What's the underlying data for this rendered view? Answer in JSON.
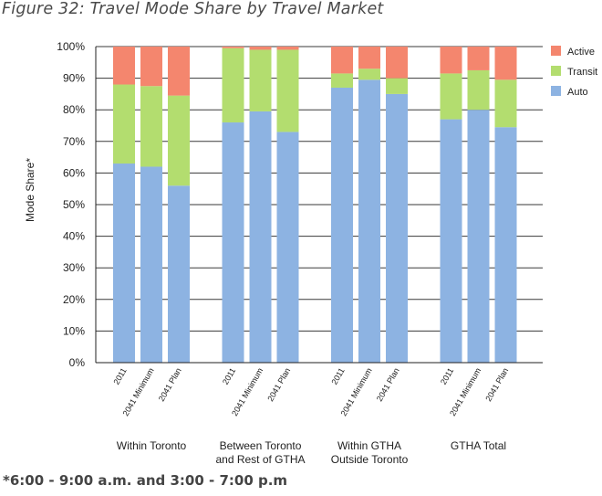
{
  "figure_title": "Figure 32: Travel Mode Share by Travel Market",
  "footnote": "*6:00 - 9:00 a.m. and 3:00 - 7:00 p.m",
  "chart_data": {
    "type": "bar",
    "stacked": true,
    "ylabel": "Mode Share*",
    "ylim": [
      0,
      100
    ],
    "yticks": [
      "0%",
      "10%",
      "20%",
      "30%",
      "40%",
      "50%",
      "60%",
      "70%",
      "80%",
      "90%",
      "100%"
    ],
    "grid": true,
    "legend_position": "top-right",
    "groups": [
      {
        "name": "Within Toronto",
        "categories": [
          "2011",
          "2041 Minimum",
          "2041 Plan"
        ]
      },
      {
        "name": "Between Toronto and Rest of GTHA",
        "categories": [
          "2011",
          "2041 Minimum",
          "2041 Plan"
        ]
      },
      {
        "name": "Within GTHA Outside Toronto",
        "categories": [
          "2011",
          "2041 Minimum",
          "2041 Plan"
        ]
      },
      {
        "name": "GTHA Total",
        "categories": [
          "2011",
          "2041 Minimum",
          "2041 Plan"
        ]
      }
    ],
    "series": [
      {
        "name": "Auto",
        "color": "#8db3e2",
        "values": [
          63,
          62,
          56,
          76,
          79.5,
          73,
          87,
          89.5,
          85,
          77,
          80,
          74.5
        ]
      },
      {
        "name": "Transit",
        "color": "#b3dd6f",
        "values": [
          25,
          25.5,
          28.5,
          23.5,
          19.5,
          26,
          4.5,
          3.5,
          5,
          14.5,
          12.5,
          15
        ]
      },
      {
        "name": "Active",
        "color": "#f4866e",
        "values": [
          12,
          12.5,
          15.5,
          0.5,
          1,
          1,
          8.5,
          7,
          10,
          8.5,
          7.5,
          10.5
        ]
      }
    ],
    "legend_order": [
      "Active",
      "Transit",
      "Auto"
    ]
  }
}
